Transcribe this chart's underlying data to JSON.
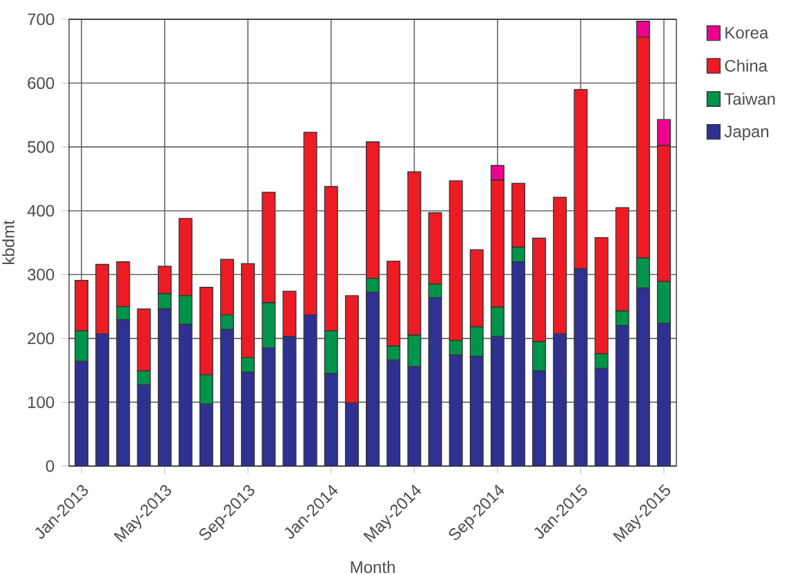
{
  "chart_data": {
    "type": "bar",
    "stacked": true,
    "xlabel": "Month",
    "ylabel": "kbdmt",
    "categories": [
      "Jan-2013",
      null,
      null,
      null,
      "May-2013",
      null,
      null,
      null,
      "Sep-2013",
      null,
      null,
      null,
      "Jan-2014",
      null,
      null,
      null,
      "May-2014",
      null,
      null,
      null,
      "Sep-2014",
      null,
      null,
      null,
      "Jan-2015",
      null,
      null,
      null,
      "May-2015"
    ],
    "series": [
      {
        "name": "Japan",
        "color": "#2e3192",
        "values": [
          164,
          207,
          229,
          127,
          246,
          222,
          97,
          214,
          147,
          185,
          203,
          237,
          145,
          99,
          272,
          166,
          156,
          264,
          174,
          172,
          203,
          320,
          149,
          207,
          309,
          153,
          220,
          279,
          224
        ]
      },
      {
        "name": "Taiwan",
        "color": "#00934a",
        "values": [
          48,
          0,
          21,
          22,
          24,
          45,
          46,
          23,
          23,
          71,
          0,
          0,
          67,
          0,
          22,
          22,
          49,
          21,
          23,
          46,
          46,
          23,
          46,
          0,
          0,
          23,
          23,
          47,
          65
        ]
      },
      {
        "name": "China",
        "color": "#ed1c24",
        "values": [
          79,
          109,
          70,
          97,
          43,
          121,
          137,
          87,
          147,
          173,
          71,
          286,
          226,
          168,
          214,
          133,
          256,
          112,
          250,
          121,
          199,
          100,
          162,
          214,
          281,
          182,
          162,
          346,
          213
        ]
      },
      {
        "name": "Korea",
        "color": "#ec008c",
        "values": [
          0,
          0,
          0,
          0,
          0,
          0,
          0,
          0,
          0,
          0,
          0,
          0,
          0,
          0,
          0,
          0,
          0,
          0,
          0,
          0,
          23,
          0,
          0,
          0,
          0,
          0,
          0,
          25,
          41
        ]
      }
    ],
    "ylim": [
      0,
      700
    ],
    "yticks": [
      0,
      100,
      200,
      300,
      400,
      500,
      600,
      700
    ],
    "grid": true,
    "legend": "top right"
  }
}
